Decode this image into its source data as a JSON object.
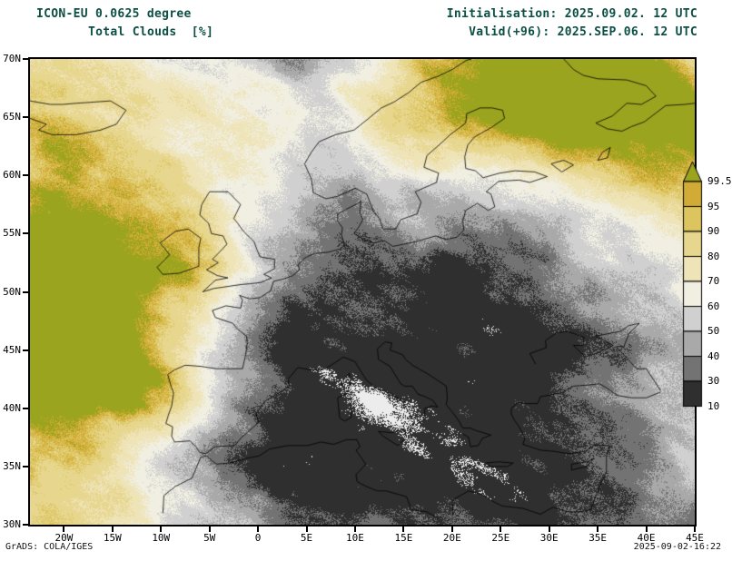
{
  "header": {
    "model": "ICON-EU 0.0625 degree",
    "product": "Total Clouds  [%]",
    "initialisation": "Initialisation: 2025.09.02. 12 UTC",
    "valid": "Valid(+96): 2025.SEP.06. 12 UTC",
    "text_color": "#0c4f44"
  },
  "footer": {
    "credit": "GrADS: COLA/IGES",
    "generated": "2025-09-02-16:22"
  },
  "axes": {
    "lat_labels": [
      "70N",
      "65N",
      "60N",
      "55N",
      "50N",
      "45N",
      "40N",
      "35N",
      "30N"
    ],
    "lon_labels": [
      "20W",
      "15W",
      "10W",
      "5W",
      "0",
      "5E",
      "10E",
      "15E",
      "20E",
      "25E",
      "30E",
      "35E",
      "40E",
      "45E"
    ]
  },
  "colorbar": {
    "tick_labels": [
      "99.5",
      "95",
      "90",
      "80",
      "70",
      "60",
      "50",
      "40",
      "30",
      "10"
    ],
    "top_triangle_color": "#9ba41e",
    "segment_colors_top_to_bottom": [
      "#d1ab35",
      "#dcc45e",
      "#e7d68d",
      "#efe4b8",
      "#f1efe2",
      "#d0d0d0",
      "#a9a9a9",
      "#737373",
      "#2f2f2f"
    ],
    "background_below_color": "#ececec"
  },
  "chart_data": {
    "type": "heatmap",
    "title": "Total Clouds [%]",
    "units": "%",
    "model": "ICON-EU 0.0625 degree",
    "init_time": "2025.09.02. 12 UTC",
    "valid_time": "2025.SEP.06. 12 UTC (+96)",
    "region": {
      "lon_min": -23.5,
      "lon_max": 45,
      "lat_min": 30,
      "lat_max": 70
    },
    "levels_percent": [
      10,
      30,
      40,
      50,
      60,
      70,
      80,
      90,
      95,
      99.5
    ],
    "palette_low_to_high": [
      "#2f2f2f",
      "#737373",
      "#a9a9a9",
      "#d0d0d0",
      "#f1efe2",
      "#efe4b8",
      "#e7d68d",
      "#dcc45e",
      "#d1ab35",
      "#9ba41e"
    ],
    "below_min_color": "#ececec",
    "legend_position": "right"
  }
}
